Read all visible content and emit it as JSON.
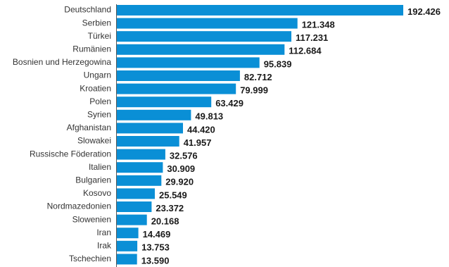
{
  "chart_data": {
    "type": "bar",
    "orientation": "horizontal",
    "title": "",
    "xlabel": "",
    "ylabel": "",
    "xlim": [
      0,
      192426
    ],
    "grid": false,
    "legend": "none",
    "bar_color": "#0a8fd6",
    "categories": [
      "Deutschland",
      "Serbien",
      "Türkei",
      "Rumänien",
      "Bosnien und Herzegowina",
      "Ungarn",
      "Kroatien",
      "Polen",
      "Syrien",
      "Afghanistan",
      "Slowakei",
      "Russische Föderation",
      "Italien",
      "Bulgarien",
      "Kosovo",
      "Nordmazedonien",
      "Slowenien",
      "Iran",
      "Irak",
      "Tschechien"
    ],
    "values": [
      192426,
      121348,
      117231,
      112684,
      95839,
      82712,
      79999,
      63429,
      49813,
      44420,
      41957,
      32576,
      30909,
      29920,
      25549,
      23372,
      20168,
      14469,
      13753,
      13590
    ],
    "value_labels": [
      "192.426",
      "121.348",
      "117.231",
      "112.684",
      "95.839",
      "82.712",
      "79.999",
      "63.429",
      "49.813",
      "44.420",
      "41.957",
      "32.576",
      "30.909",
      "29.920",
      "25.549",
      "23.372",
      "20.168",
      "14.469",
      "13.753",
      "13.590"
    ]
  }
}
